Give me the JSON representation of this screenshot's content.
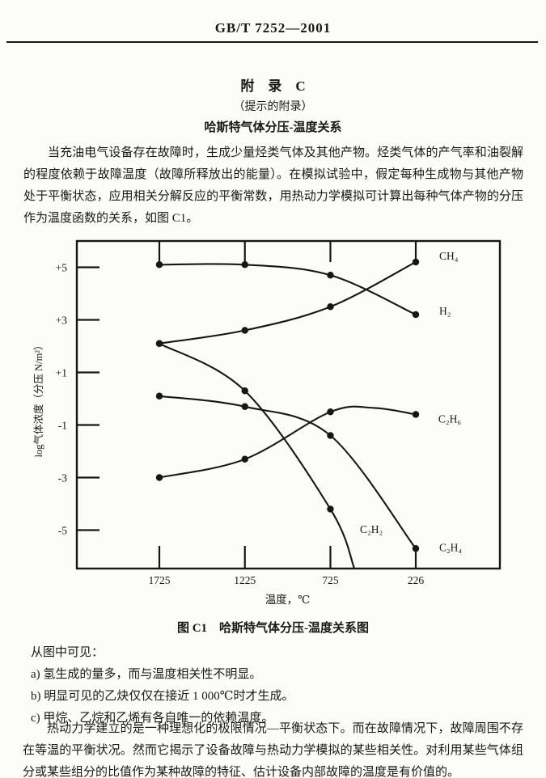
{
  "header": {
    "doc_number": "GB/T 7252—2001"
  },
  "appendix": {
    "title": "附　录　C",
    "subtitle": "（提示的附录）",
    "heading": "哈斯特气体分压-温度关系"
  },
  "intro_paragraph": "当充油电气设备存在故障时，生成少量烃类气体及其他产物。烃类气体的产气率和油裂解的程度依赖于故障温度（故障所释放出的能量）。在模拟试验中，假定每种生成物与其他产物处于平衡状态，应用相关分解反应的平衡常数，用热动力学模拟可计算出每种气体产物的分压作为温度函数的关系，如图 C1。",
  "figure": {
    "caption": "图 C1　哈斯特气体分压-温度关系图"
  },
  "chart_data": {
    "type": "line",
    "x": [
      1725,
      1225,
      725,
      226
    ],
    "x_tick_labels": [
      "1725",
      "1225",
      "725",
      "226"
    ],
    "xlabel": "温度，℃",
    "ylabel": "log气体浓度（分压 N/m²）",
    "y_ticks": [
      5,
      3,
      1,
      -1,
      -3,
      -5
    ],
    "y_tick_labels": [
      "+5",
      "+3",
      "+1",
      "-1",
      "-3",
      "-5"
    ],
    "ylim": [
      -6.5,
      6.0
    ],
    "grid": false,
    "legend_position": "labels-at-line-ends",
    "series": [
      {
        "id": "H2",
        "name": "H₂",
        "values": [
          5.1,
          5.1,
          4.7,
          3.2
        ],
        "label_at": [
          89,
          3.2
        ]
      },
      {
        "id": "CH4",
        "name": "CH₄",
        "values": [
          2.1,
          2.6,
          3.5,
          5.2
        ],
        "label_at": [
          89,
          5.3
        ]
      },
      {
        "id": "C2H6",
        "name": "C₂H₆",
        "values": [
          -3.0,
          -2.3,
          -0.5,
          -0.6
        ],
        "label_at": [
          94,
          -0.9
        ],
        "extra_points": [
          [
            470,
            -0.35
          ]
        ]
      },
      {
        "id": "C2H4",
        "name": "C₂H₄",
        "values": [
          0.1,
          -0.3,
          -1.4,
          -5.7
        ],
        "label_at": [
          89,
          -5.8
        ]
      },
      {
        "id": "C2H2",
        "name": "C₂H₂",
        "values": [
          2.1,
          0.3,
          -4.2,
          null
        ],
        "label_at": [
          552,
          -5.1
        ],
        "extra_points": [
          [
            585,
            -6.46
          ]
        ],
        "note": "curve runs below chart bottom near 600 ℃"
      }
    ]
  },
  "observations": {
    "lead": "从图中可见：",
    "items": [
      "a) 氢生成的量多，而与温度相关性不明显。",
      "b) 明显可见的乙炔仅仅在接近 1 000℃时才生成。",
      "c) 甲烷、乙烷和乙烯有各自唯一的依赖温度。"
    ]
  },
  "closing_paragraph": "热动力学建立的是一种理想化的极限情况—平衡状态下。而在故障情况下，故障周围不存在等温的平衡状况。然而它揭示了设备故障与热动力学模拟的某些相关性。对利用某些气体组分或某些组分的比值作为某种故障的特征、估计设备内部故障的温度是有价值的。"
}
